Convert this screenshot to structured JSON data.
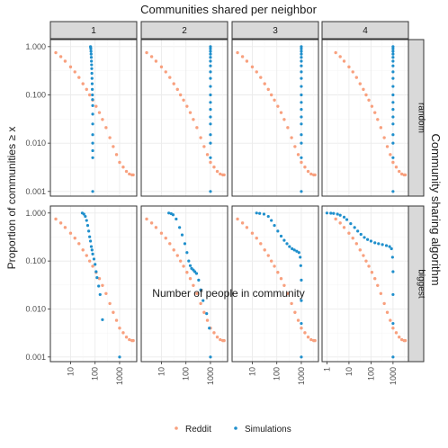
{
  "chart_data": {
    "type": "scatter",
    "title": "Communities shared per neighbor",
    "xlabel": "Number of people in community",
    "ylabel": "Proportion of communities ≥ x",
    "x_scale": "log10",
    "y_scale": "log10",
    "facet_cols": {
      "values": [
        "1",
        "2",
        "3",
        "4"
      ]
    },
    "facet_rows": {
      "title": "Community sharing algorithm",
      "values": [
        "random",
        "biggest"
      ]
    },
    "yticks": [
      {
        "value": 0.001,
        "label": "0.001"
      },
      {
        "value": 0.01,
        "label": "0.010"
      },
      {
        "value": 0.1,
        "label": "0.100"
      },
      {
        "value": 1,
        "label": "1.000"
      }
    ],
    "xticks": {
      "1": [
        {
          "value": 10,
          "label": "10"
        },
        {
          "value": 100,
          "label": "100"
        },
        {
          "value": 1000,
          "label": "1000"
        }
      ],
      "2": [
        {
          "value": 10,
          "label": "10"
        },
        {
          "value": 100,
          "label": "100"
        },
        {
          "value": 1000,
          "label": "1000"
        }
      ],
      "3": [
        {
          "value": 10,
          "label": "10"
        },
        {
          "value": 100,
          "label": "100"
        },
        {
          "value": 1000,
          "label": "1000"
        }
      ],
      "4": [
        {
          "value": 1,
          "label": "1"
        },
        {
          "value": 10,
          "label": "10"
        },
        {
          "value": 100,
          "label": "100"
        },
        {
          "value": 1000,
          "label": "1000"
        }
      ]
    },
    "xlim": {
      "1": [
        1.5,
        5000
      ],
      "2": [
        1.5,
        5000
      ],
      "3": [
        1.5,
        5000
      ],
      "4": [
        0.6,
        5000
      ]
    },
    "ylim": [
      0.0008,
      1.4
    ],
    "legend": {
      "position": "bottom",
      "title": ""
    },
    "series": [
      {
        "name": "Reddit",
        "color": "#f8a07e",
        "x": [
          2.5,
          4,
          6,
          10,
          15,
          22,
          32,
          45,
          60,
          80,
          110,
          150,
          200,
          280,
          400,
          550,
          750,
          1000,
          1400,
          1900,
          2500,
          3200,
          3600
        ],
        "y": [
          0.75,
          0.62,
          0.5,
          0.38,
          0.3,
          0.23,
          0.17,
          0.13,
          0.1,
          0.078,
          0.058,
          0.043,
          0.031,
          0.021,
          0.013,
          0.0085,
          0.0058,
          0.004,
          0.0032,
          0.0026,
          0.0023,
          0.0022,
          0.0022
        ]
      },
      {
        "name": "Simulations",
        "color": "#1f8fcc",
        "panels": {
          "random": {
            "1": {
              "x": [
                65,
                66,
                67,
                68,
                69,
                70,
                71,
                72,
                73,
                74,
                75,
                76,
                77,
                78,
                79,
                80,
                80,
                80,
                80,
                80,
                80,
                80,
                80
              ],
              "y": [
                1.0,
                0.97,
                0.9,
                0.8,
                0.7,
                0.6,
                0.5,
                0.42,
                0.35,
                0.28,
                0.22,
                0.17,
                0.13,
                0.1,
                0.08,
                0.06,
                0.04,
                0.025,
                0.015,
                0.01,
                0.007,
                0.005,
                0.001
              ]
            },
            "2": {
              "x": [
                1000,
                1000,
                1000,
                1000,
                1000,
                1000,
                1000,
                1000,
                1000,
                1000,
                1000,
                1000,
                1000,
                1000,
                1000,
                1000,
                1000,
                1000,
                1000
              ],
              "y": [
                1.0,
                0.9,
                0.8,
                0.7,
                0.6,
                0.5,
                0.4,
                0.3,
                0.22,
                0.15,
                0.1,
                0.07,
                0.05,
                0.035,
                0.025,
                0.015,
                0.01,
                0.005,
                0.001
              ]
            },
            "3": {
              "x": [
                1000,
                1000,
                1000,
                1000,
                1000,
                1000,
                1000,
                1000,
                1000,
                1000,
                1000,
                1000,
                1000,
                1000,
                1000,
                1000,
                1000,
                1000,
                1000
              ],
              "y": [
                1.0,
                0.9,
                0.8,
                0.7,
                0.6,
                0.5,
                0.4,
                0.3,
                0.22,
                0.15,
                0.1,
                0.07,
                0.05,
                0.035,
                0.025,
                0.015,
                0.01,
                0.005,
                0.001
              ]
            },
            "4": {
              "x": [
                1000,
                1000,
                1000,
                1000,
                1000,
                1000,
                1000,
                1000,
                1000,
                1000,
                1000,
                1000,
                1000,
                1000,
                1000,
                1000,
                1000,
                1000,
                1000
              ],
              "y": [
                1.0,
                0.9,
                0.8,
                0.7,
                0.6,
                0.5,
                0.4,
                0.3,
                0.22,
                0.15,
                0.1,
                0.07,
                0.05,
                0.035,
                0.025,
                0.015,
                0.01,
                0.005,
                0.001
              ]
            }
          },
          "biggest": {
            "1": {
              "x": [
                30,
                35,
                40,
                45,
                50,
                55,
                60,
                65,
                70,
                75,
                80,
                90,
                100,
                110,
                120,
                140,
                160,
                200,
                1000
              ],
              "y": [
                1.0,
                0.95,
                0.85,
                0.7,
                0.55,
                0.42,
                0.32,
                0.26,
                0.2,
                0.17,
                0.14,
                0.11,
                0.085,
                0.06,
                0.045,
                0.03,
                0.02,
                0.006,
                0.001
              ]
            },
            "2": {
              "x": [
                20,
                25,
                30,
                40,
                55,
                70,
                90,
                110,
                130,
                150,
                170,
                200,
                230,
                270,
                330,
                400,
                500,
                700,
                900,
                1000
              ],
              "y": [
                1.0,
                0.97,
                0.92,
                0.75,
                0.5,
                0.35,
                0.23,
                0.15,
                0.1,
                0.08,
                0.07,
                0.065,
                0.06,
                0.055,
                0.04,
                0.025,
                0.015,
                0.008,
                0.004,
                0.001
              ]
            },
            "3": {
              "x": [
                15,
                20,
                30,
                45,
                60,
                80,
                110,
                150,
                200,
                260,
                330,
                420,
                520,
                650,
                800,
                900,
                950,
                1000,
                1000,
                1000,
                1000
              ],
              "y": [
                1.0,
                0.98,
                0.95,
                0.85,
                0.7,
                0.55,
                0.42,
                0.33,
                0.27,
                0.23,
                0.2,
                0.18,
                0.17,
                0.16,
                0.15,
                0.12,
                0.08,
                0.04,
                0.015,
                0.005,
                0.001
              ]
            },
            "4": {
              "x": [
                1,
                1.5,
                2,
                3,
                4,
                6,
                8,
                12,
                18,
                25,
                35,
                50,
                70,
                100,
                150,
                220,
                330,
                500,
                700,
                850,
                950,
                1000,
                1000,
                1000,
                1000
              ],
              "y": [
                1.0,
                0.99,
                0.98,
                0.95,
                0.9,
                0.82,
                0.73,
                0.6,
                0.5,
                0.42,
                0.36,
                0.31,
                0.28,
                0.26,
                0.24,
                0.23,
                0.22,
                0.21,
                0.2,
                0.18,
                0.12,
                0.06,
                0.02,
                0.005,
                0.001
              ]
            }
          }
        }
      }
    ]
  }
}
